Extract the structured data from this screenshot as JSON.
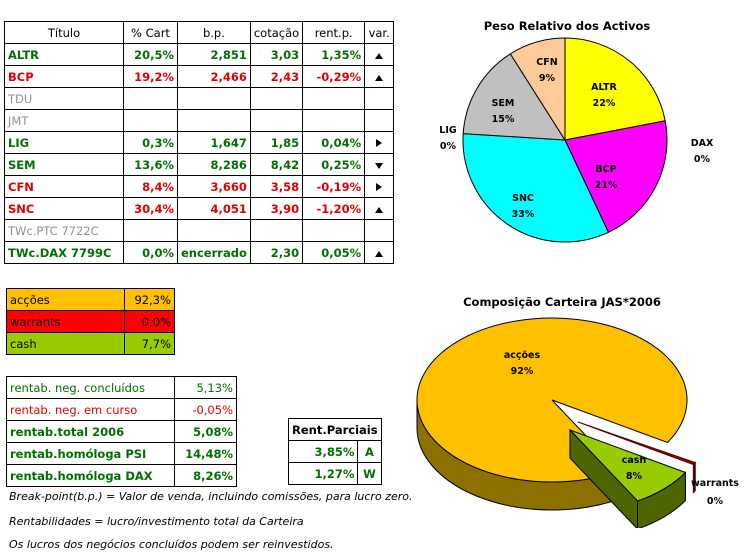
{
  "table": {
    "headers": [
      "Título",
      "% Cart",
      "b.p.",
      "cotação",
      "rent.p.",
      "var."
    ],
    "rows": [
      {
        "name": "ALTR",
        "pct": "20,5%",
        "bp": "2,851",
        "cot": "3,03",
        "rent": "1,35%",
        "var": "up",
        "color": "green"
      },
      {
        "name": "BCP",
        "pct": "19,2%",
        "bp": "2,466",
        "cot": "2,43",
        "rent": "-0,29%",
        "var": "up",
        "color": "red"
      },
      {
        "name": "TDU",
        "pct": "",
        "bp": "",
        "cot": "",
        "rent": "",
        "var": "",
        "color": "grey"
      },
      {
        "name": "JMT",
        "pct": "",
        "bp": "",
        "cot": "",
        "rent": "",
        "var": "",
        "color": "grey"
      },
      {
        "name": "LIG",
        "pct": "0,3%",
        "bp": "1,647",
        "cot": "1,85",
        "rent": "0,04%",
        "var": "right",
        "color": "green"
      },
      {
        "name": "SEM",
        "pct": "13,6%",
        "bp": "8,286",
        "cot": "8,42",
        "rent": "0,25%",
        "var": "down",
        "color": "green"
      },
      {
        "name": "CFN",
        "pct": "8,4%",
        "bp": "3,660",
        "cot": "3,58",
        "rent": "-0,19%",
        "var": "right",
        "color": "red"
      },
      {
        "name": "SNC",
        "pct": "30,4%",
        "bp": "4,051",
        "cot": "3,90",
        "rent": "-1,20%",
        "var": "up",
        "color": "red"
      },
      {
        "name": "TWc.PTC 7722C",
        "pct": "",
        "bp": "",
        "cot": "",
        "rent": "",
        "var": "",
        "color": "grey"
      },
      {
        "name": "TWc.DAX 7799C",
        "pct": "0,0%",
        "bp": "encerrado",
        "cot": "2,30",
        "rent": "0,05%",
        "var": "up",
        "color": "green"
      }
    ]
  },
  "allocation": [
    {
      "label": "acções",
      "value": "92,3%",
      "bg": "#ffc000"
    },
    {
      "label": "warrants",
      "value": "0,0%",
      "bg": "#ff0000"
    },
    {
      "label": "cash",
      "value": "7,7%",
      "bg": "#99cc00"
    }
  ],
  "rentab": [
    {
      "label": "rentab. neg. concluídos",
      "value": "5,13%",
      "color": "green",
      "bold": false
    },
    {
      "label": "rentab. neg. em curso",
      "value": "-0,05%",
      "color": "red",
      "bold": false
    },
    {
      "label": "rentab.total 2006",
      "value": "5,08%",
      "color": "green",
      "bold": true
    },
    {
      "label": "rentab.homóloga PSI",
      "value": "14,48%",
      "color": "green",
      "bold": true
    },
    {
      "label": "rentab.homóloga DAX",
      "value": "8,26%",
      "color": "green",
      "bold": true
    }
  ],
  "parciais": {
    "header": "Rent.Parciais",
    "rows": [
      {
        "value": "3,85%",
        "code": "A"
      },
      {
        "value": "1,27%",
        "code": "W"
      }
    ]
  },
  "notes": [
    "Break-point(b.p.) = Valor de venda, incluindo comissões, para lucro zero.",
    "Rentabilidades = lucro/investimento total da Carteira",
    "Os lucros dos negócios concluídos podem ser reinvestidos."
  ],
  "chart_data": [
    {
      "type": "pie",
      "title": "Peso Relativo dos Activos",
      "slices": [
        {
          "label": "ALTR",
          "value": 22,
          "text": "22%",
          "color": "#ffff00"
        },
        {
          "label": "BCP",
          "value": 21,
          "text": "21%",
          "color": "#ff00ff"
        },
        {
          "label": "DAX",
          "value": 0,
          "text": "0%",
          "color": "#3366ff"
        },
        {
          "label": "SNC",
          "value": 33,
          "text": "33%",
          "color": "#00ffff"
        },
        {
          "label": "LIG",
          "value": 0,
          "text": "0%",
          "color": "#808080"
        },
        {
          "label": "SEM",
          "value": 15,
          "text": "15%",
          "color": "#c0c0c0"
        },
        {
          "label": "CFN",
          "value": 9,
          "text": "9%",
          "color": "#ffcc99"
        }
      ]
    },
    {
      "type": "pie",
      "title": "Composição Carteira JAS*2006",
      "slices": [
        {
          "label": "acções",
          "value": 92,
          "text": "92%",
          "color": "#ffc000"
        },
        {
          "label": "cash",
          "value": 8,
          "text": "8%",
          "color": "#99cc00"
        },
        {
          "label": "warrants",
          "value": 0,
          "text": "0%",
          "color": "#990000"
        }
      ]
    }
  ]
}
